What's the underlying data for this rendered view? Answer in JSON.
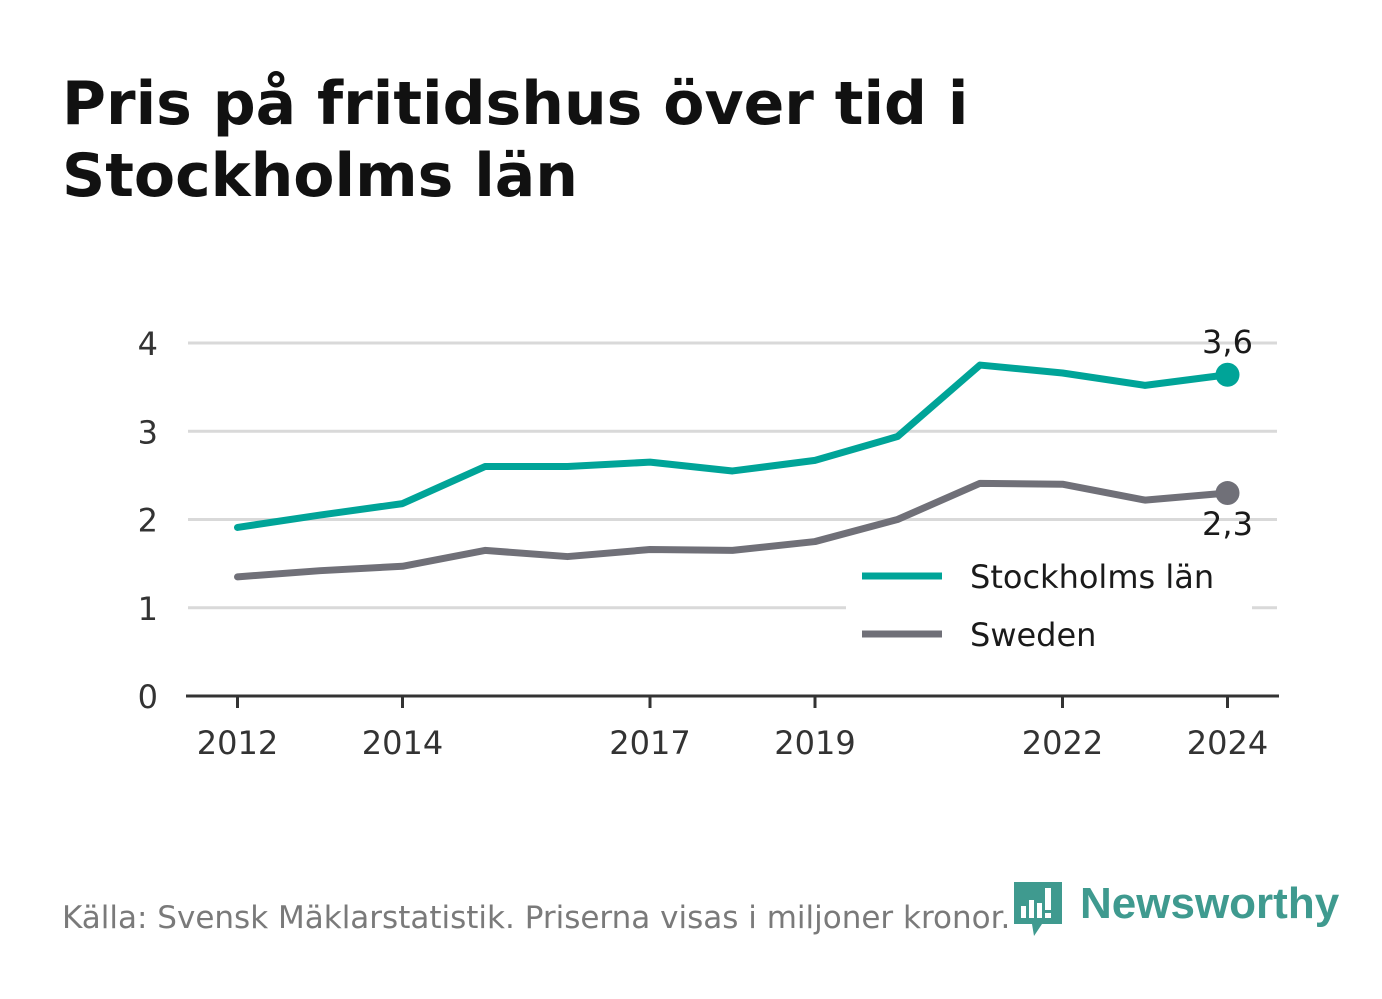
{
  "title": "Pris på fritidshus över tid i Stockholms län",
  "footer": {
    "source": "Källa: Svensk Mäklarstatistik. Priserna visas i miljoner kronor."
  },
  "brand": {
    "name": "Newsworthy",
    "color": "#3f9a8f",
    "icon": "bar-chart-speech-bubble-icon"
  },
  "chart_data": {
    "type": "line",
    "x": [
      2012,
      2013,
      2014,
      2015,
      2016,
      2017,
      2018,
      2019,
      2020,
      2021,
      2022,
      2023,
      2024
    ],
    "x_tick_labels": [
      "2012",
      "2014",
      "2017",
      "2019",
      "2022",
      "2024"
    ],
    "x_tick_values": [
      2012,
      2014,
      2017,
      2019,
      2022,
      2024
    ],
    "xlim": [
      2011.4,
      2024.6
    ],
    "ylim": [
      0,
      4
    ],
    "y_ticks": [
      0,
      1,
      2,
      3,
      4
    ],
    "y_tick_labels": [
      "0",
      "1",
      "2",
      "3",
      "4"
    ],
    "grid": true,
    "legend_position": "lower-right",
    "series": [
      {
        "name": "Stockholms län",
        "color": "#00a498",
        "values": [
          1.91,
          2.05,
          2.18,
          2.6,
          2.6,
          2.65,
          2.55,
          2.67,
          2.94,
          3.75,
          3.66,
          3.52,
          3.64
        ],
        "end_label": "3,6"
      },
      {
        "name": "Sweden",
        "color": "#707078",
        "values": [
          1.35,
          1.42,
          1.47,
          1.65,
          1.58,
          1.66,
          1.65,
          1.75,
          2.0,
          2.41,
          2.4,
          2.22,
          2.3
        ],
        "end_label": "2,3"
      }
    ]
  }
}
